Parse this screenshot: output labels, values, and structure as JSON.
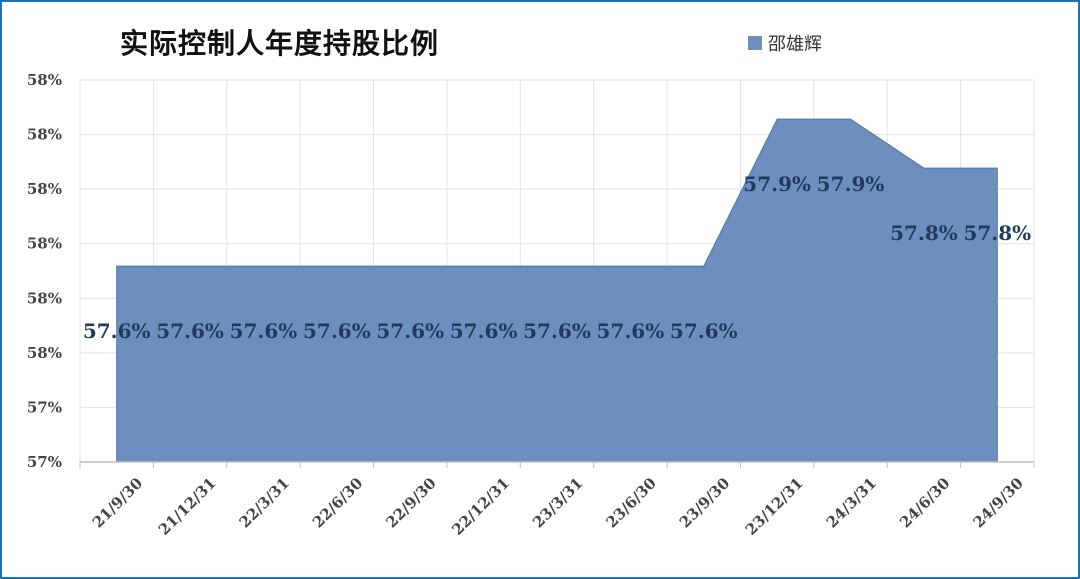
{
  "chart_data": {
    "type": "area",
    "title": "实际控制人年度持股比例",
    "categories": [
      "21/9/30",
      "21/12/31",
      "22/3/31",
      "22/6/30",
      "22/9/30",
      "22/12/31",
      "23/3/31",
      "23/6/30",
      "23/9/30",
      "23/12/31",
      "24/3/31",
      "24/6/30",
      "24/9/30"
    ],
    "series": [
      {
        "name": "邵雄辉",
        "values": [
          57.6,
          57.6,
          57.6,
          57.6,
          57.6,
          57.6,
          57.6,
          57.6,
          57.6,
          57.9,
          57.9,
          57.8,
          57.8
        ],
        "data_labels": [
          "57.6%",
          "57.6%",
          "57.6%",
          "57.6%",
          "57.6%",
          "57.6%",
          "57.6%",
          "57.6%",
          "57.6%",
          "57.9%",
          "57.9%",
          "57.8%",
          "57.8%"
        ]
      }
    ],
    "y_tick_labels": [
      "57%",
      "57%",
      "58%",
      "58%",
      "58%",
      "58%",
      "58%",
      "58%"
    ],
    "ylim": [
      57.2,
      57.98
    ],
    "xlabel": "",
    "ylabel": "",
    "grid": true,
    "legend_position": "top-right"
  },
  "colors": {
    "area_fill": "#6d8fbe",
    "area_stroke": "#4f73a8",
    "gridline": "#e3e3e3",
    "axis": "#bfbfbf",
    "frame": "#1f6fb4"
  }
}
